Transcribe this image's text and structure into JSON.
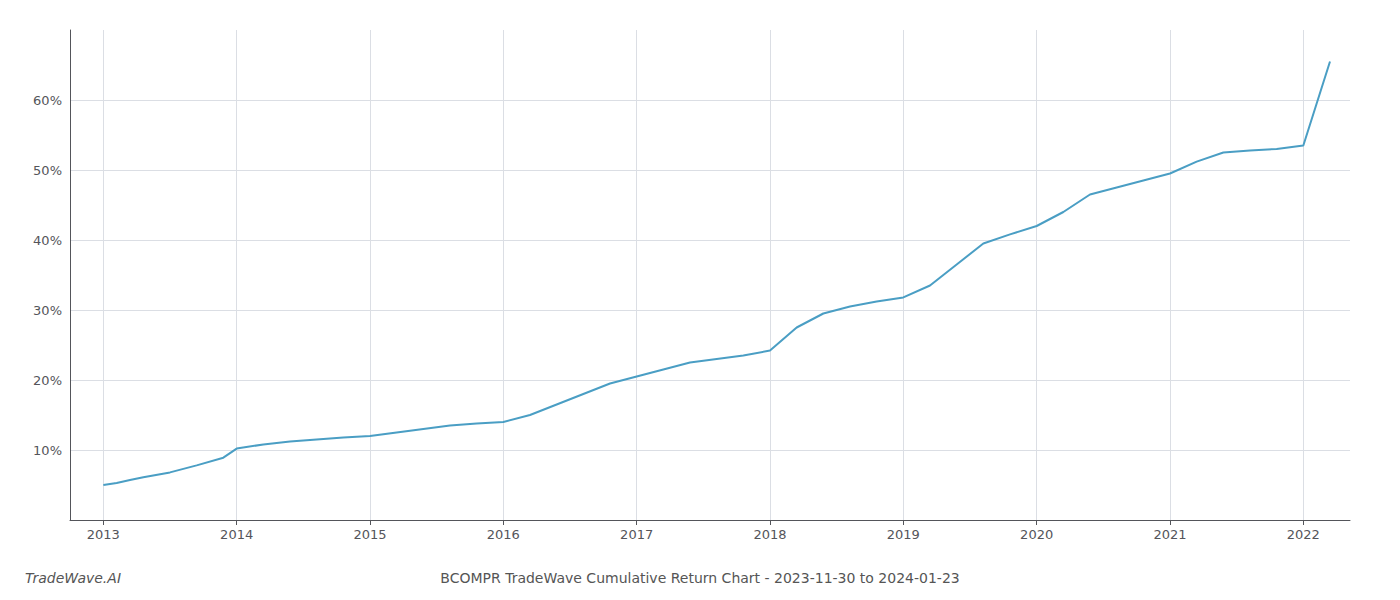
{
  "chart_data": {
    "type": "line",
    "title": "BCOMPR TradeWave Cumulative Return Chart - 2023-11-30 to 2024-01-23",
    "annotations": [
      "TradeWave.AI"
    ],
    "x": [
      2013.0,
      2013.1,
      2013.2,
      2013.3,
      2013.5,
      2013.7,
      2013.9,
      2014.0,
      2014.2,
      2014.4,
      2014.6,
      2014.8,
      2015.0,
      2015.2,
      2015.4,
      2015.6,
      2015.8,
      2016.0,
      2016.2,
      2016.4,
      2016.6,
      2016.8,
      2017.0,
      2017.2,
      2017.4,
      2017.6,
      2017.8,
      2018.0,
      2018.2,
      2018.4,
      2018.6,
      2018.8,
      2019.0,
      2019.2,
      2019.4,
      2019.6,
      2019.8,
      2020.0,
      2020.2,
      2020.4,
      2020.6,
      2020.8,
      2021.0,
      2021.2,
      2021.4,
      2021.6,
      2021.8,
      2022.0,
      2022.1,
      2022.2
    ],
    "values": [
      5.0,
      5.3,
      5.7,
      6.1,
      6.8,
      7.8,
      8.9,
      10.2,
      10.8,
      11.2,
      11.5,
      11.8,
      12.0,
      12.5,
      13.0,
      13.5,
      13.8,
      14.0,
      15.0,
      16.5,
      18.0,
      19.5,
      20.5,
      21.5,
      22.5,
      23.0,
      23.5,
      24.2,
      27.5,
      29.5,
      30.5,
      31.2,
      31.8,
      33.5,
      36.5,
      39.5,
      40.8,
      42.0,
      44.0,
      46.5,
      47.5,
      48.5,
      49.5,
      51.2,
      52.5,
      52.8,
      53.0,
      53.5,
      59.5,
      65.5
    ],
    "color": "#4a9ec4",
    "xlim": [
      2012.75,
      2022.35
    ],
    "xticks": [
      2013,
      2014,
      2015,
      2016,
      2017,
      2018,
      2019,
      2020,
      2021,
      2022
    ],
    "ylim": [
      0,
      70
    ],
    "yticks": [
      {
        "value": 10,
        "label": "10%"
      },
      {
        "value": 20,
        "label": "20%"
      },
      {
        "value": 30,
        "label": "30%"
      },
      {
        "value": 40,
        "label": "40%"
      },
      {
        "value": 50,
        "label": "50%"
      },
      {
        "value": 60,
        "label": "60%"
      }
    ],
    "grid": true
  }
}
